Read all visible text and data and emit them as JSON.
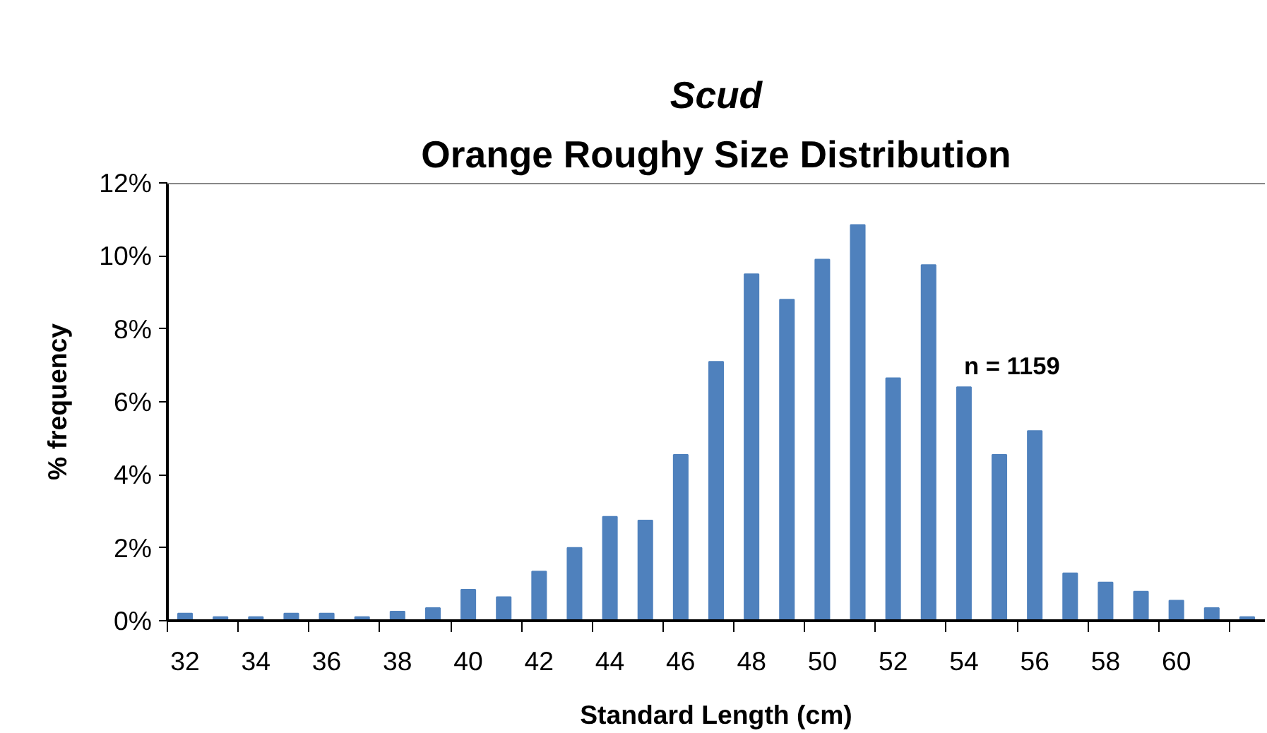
{
  "chart_data": {
    "type": "bar",
    "title": "Scud",
    "subtitle": "Orange Roughy Size Distribution",
    "xlabel": "Standard Length (cm)",
    "ylabel": "% frequency",
    "categories": [
      "32",
      null,
      "34",
      null,
      "36",
      null,
      "38",
      null,
      "40",
      null,
      "42",
      null,
      "44",
      null,
      "46",
      null,
      "48",
      null,
      "50",
      null,
      "52",
      null,
      "54",
      null,
      "56",
      null,
      "58",
      null,
      "60",
      null,
      null
    ],
    "values": [
      0.2,
      0.1,
      0.1,
      0.2,
      0.2,
      0.1,
      0.25,
      0.35,
      0.85,
      0.65,
      1.35,
      2.0,
      2.85,
      2.75,
      4.55,
      7.1,
      9.5,
      8.8,
      9.9,
      10.85,
      6.65,
      9.75,
      6.4,
      4.55,
      5.2,
      1.3,
      1.05,
      0.8,
      0.55,
      0.35,
      0.1
    ],
    "color": "#4f81bd",
    "ylim": [
      0,
      12
    ],
    "yticks": [
      {
        "value": 0,
        "label": "0%"
      },
      {
        "value": 2,
        "label": "2%"
      },
      {
        "value": 4,
        "label": "4%"
      },
      {
        "value": 6,
        "label": "6%"
      },
      {
        "value": 8,
        "label": "8%"
      },
      {
        "value": 10,
        "label": "10%"
      },
      {
        "value": 12,
        "label": "12%"
      }
    ],
    "annotations": [
      "n =      1159"
    ],
    "grid": false
  }
}
